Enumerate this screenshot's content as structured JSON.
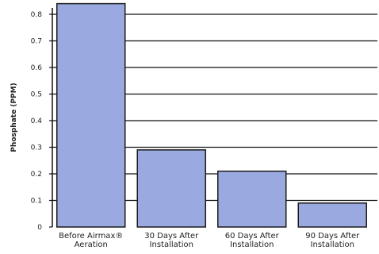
{
  "chart_data": {
    "type": "bar",
    "title": "",
    "xlabel": "",
    "ylabel": "Phosphate (PPM)",
    "ylim": [
      0,
      0.8
    ],
    "yticks": [
      "0",
      "0.1",
      "0.2",
      "0.3",
      "0.4",
      "0.5",
      "0.6",
      "0.7",
      "0.8"
    ],
    "categories": [
      [
        "Before Airmax®",
        "Aeration"
      ],
      [
        "30 Days After",
        "Installation"
      ],
      [
        "60 Days After",
        "Installation"
      ],
      [
        "90 Days After",
        "Installation"
      ]
    ],
    "values": [
      0.84,
      0.29,
      0.21,
      0.09
    ],
    "grid": true,
    "colors": {
      "bar": "#9aa9df",
      "bar_edge": "#1a1a1a",
      "grid": "#111111",
      "axis": "#111111"
    }
  }
}
